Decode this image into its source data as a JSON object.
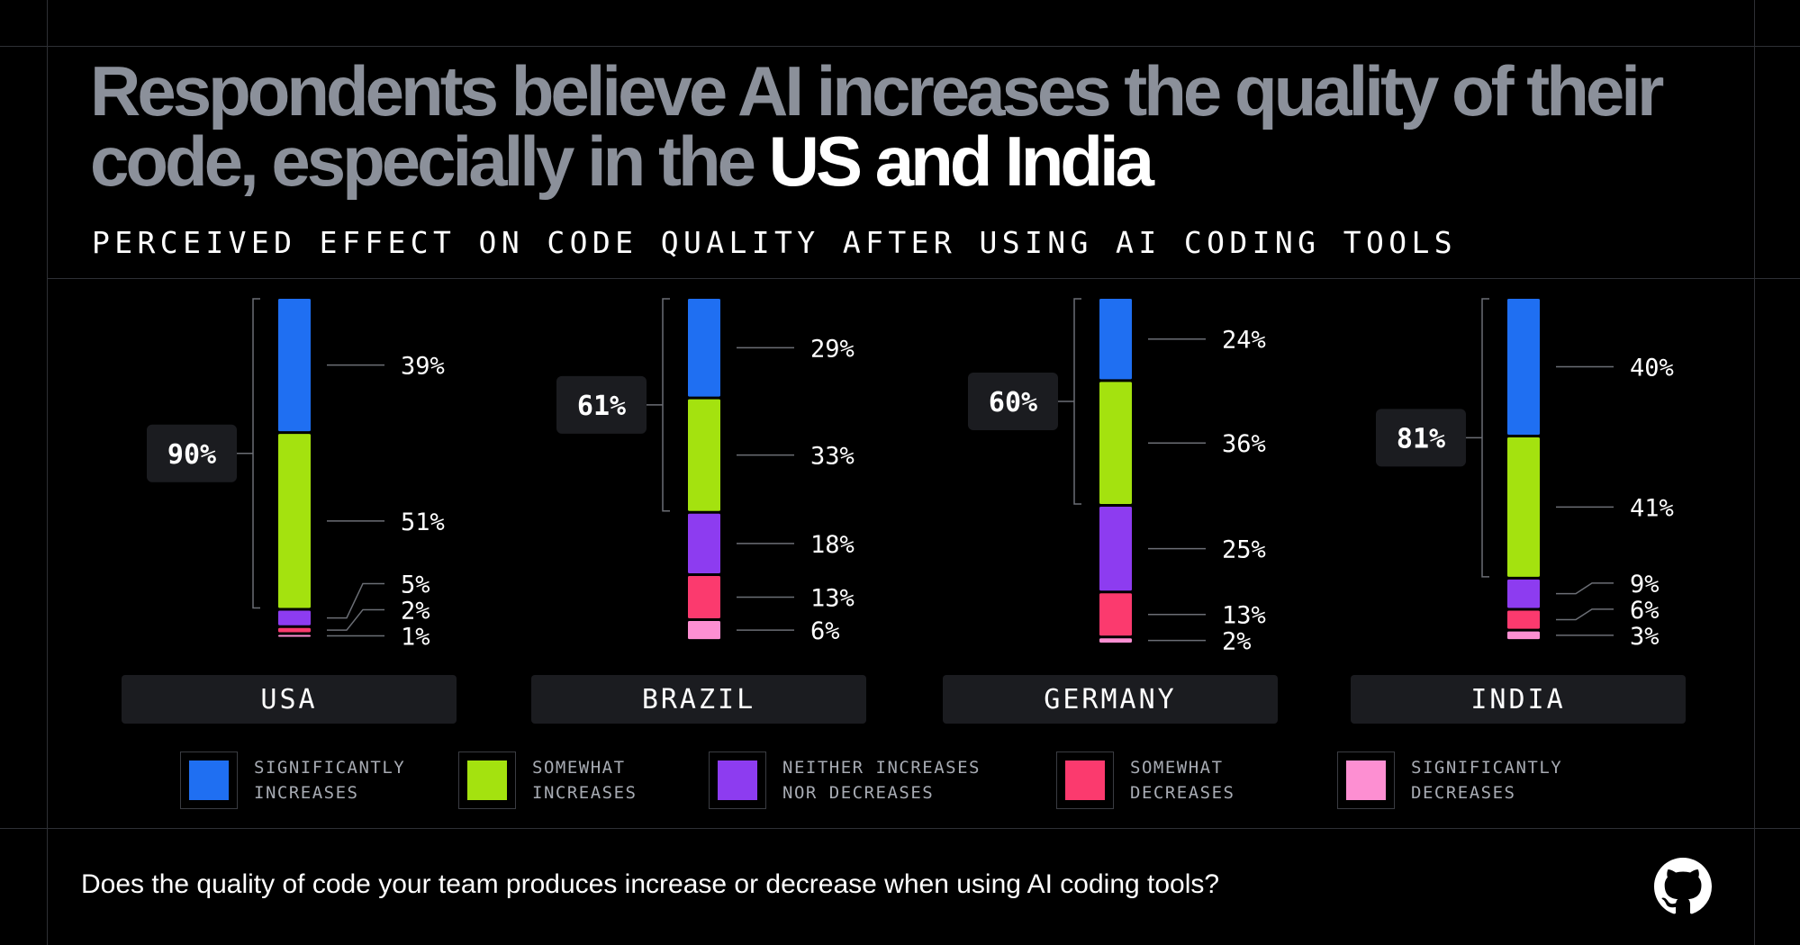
{
  "title": {
    "main": "Respondents believe AI increases the quality of their code, especially in the ",
    "highlight": "US and India"
  },
  "subtitle": "PERCEIVED EFFECT ON CODE QUALITY AFTER USING AI CODING TOOLS",
  "footer": {
    "question": "Does the quality of code your team produces increase or decrease when using AI coding tools?",
    "logo": "github-icon"
  },
  "chart_data": {
    "type": "bar",
    "stacked": true,
    "orientation": "vertical",
    "categories": [
      "USA",
      "BRAZIL",
      "GERMANY",
      "INDIA"
    ],
    "series": [
      {
        "name": "SIGNIFICANTLY INCREASES",
        "color": "#1f6ff2",
        "values": [
          39,
          29,
          24,
          40
        ]
      },
      {
        "name": "SOMEWHAT INCREASES",
        "color": "#a4e20f",
        "values": [
          51,
          33,
          36,
          41
        ]
      },
      {
        "name": "NEITHER INCREASES NOR DECREASES",
        "color": "#8d3cf0",
        "values": [
          5,
          18,
          25,
          9
        ]
      },
      {
        "name": "SOMEWHAT DECREASES",
        "color": "#fb3a6e",
        "values": [
          2,
          13,
          13,
          6
        ]
      },
      {
        "name": "SIGNIFICANTLY DECREASES",
        "color": "#fd8fd2",
        "values": [
          1,
          6,
          2,
          3
        ]
      }
    ],
    "totals_increase": [
      "90%",
      "61%",
      "60%",
      "81%"
    ],
    "value_labels": [
      [
        "39%",
        "51%",
        "5%",
        "2%",
        "1%"
      ],
      [
        "29%",
        "33%",
        "18%",
        "13%",
        "6%"
      ],
      [
        "24%",
        "36%",
        "25%",
        "13%",
        "2%"
      ],
      [
        "40%",
        "41%",
        "9%",
        "6%",
        "3%"
      ]
    ],
    "legend_lines": [
      [
        "SIGNIFICANTLY",
        "INCREASES"
      ],
      [
        "SOMEWHAT",
        "INCREASES"
      ],
      [
        "NEITHER INCREASES",
        "NOR DECREASES"
      ],
      [
        "SOMEWHAT",
        "DECREASES"
      ],
      [
        "SIGNIFICANTLY",
        "DECREASES"
      ]
    ],
    "legend_position": "bottom",
    "grid": false
  }
}
